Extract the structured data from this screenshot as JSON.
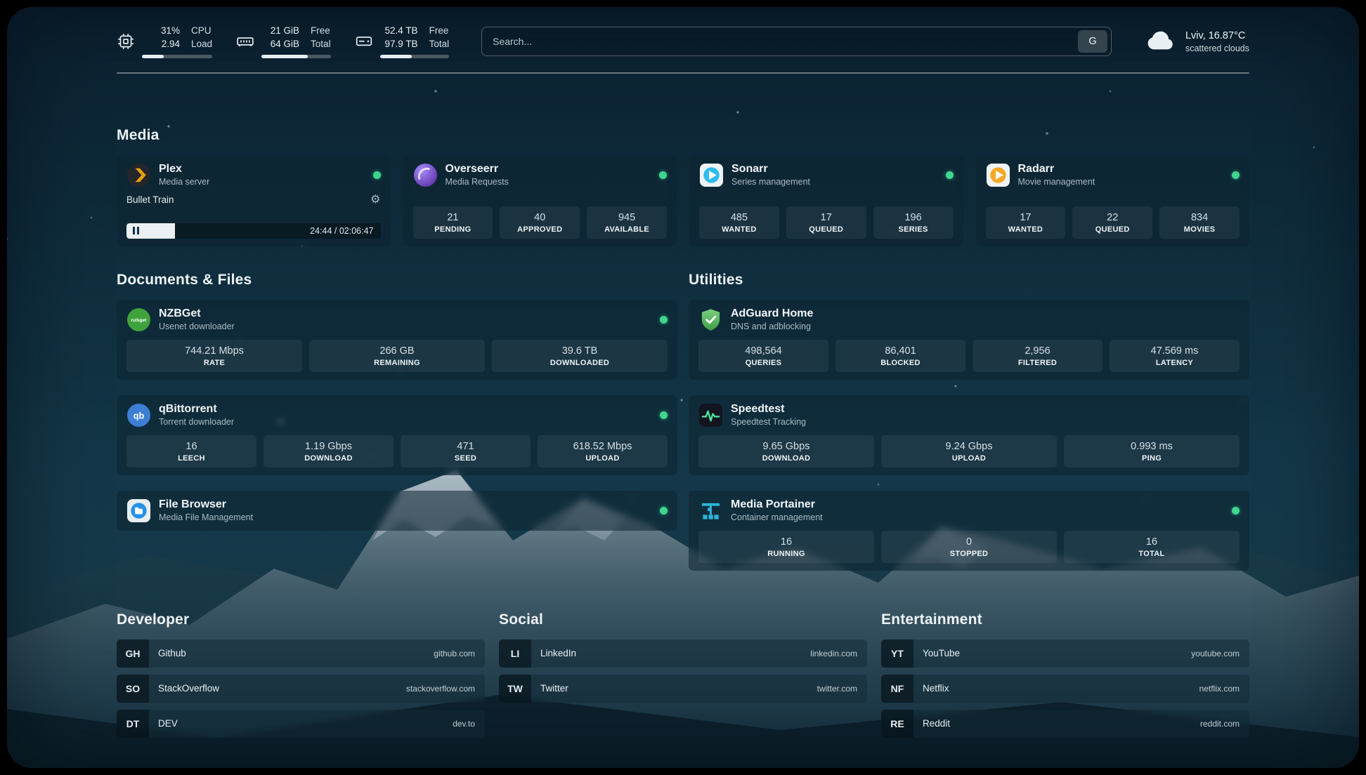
{
  "topbar": {
    "cpu": {
      "value1": "31%",
      "value2": "2.94",
      "label1": "CPU",
      "label2": "Load",
      "progress": 31
    },
    "ram": {
      "value1": "21 GiB",
      "value2": "64 GiB",
      "label1": "Free",
      "label2": "Total",
      "progress": 67
    },
    "disk": {
      "value1": "52.4 TB",
      "value2": "97.9 TB",
      "label1": "Free",
      "label2": "Total",
      "progress": 46
    },
    "search": {
      "placeholder": "Search...",
      "button_label": "G"
    },
    "weather": {
      "location": "Lviv, 16.87°C",
      "condition": "scattered clouds"
    }
  },
  "sections": {
    "media": "Media",
    "documents": "Documents & Files",
    "utilities": "Utilities",
    "developer": "Developer",
    "social": "Social",
    "entertainment": "Entertainment"
  },
  "services": {
    "plex": {
      "name": "Plex",
      "subtitle": "Media server",
      "now_playing": "Bullet Train",
      "time": "24:44 / 02:06:47",
      "progress": 19
    },
    "overseerr": {
      "name": "Overseerr",
      "subtitle": "Media Requests",
      "stats": [
        {
          "value": "21",
          "label": "PENDING"
        },
        {
          "value": "40",
          "label": "APPROVED"
        },
        {
          "value": "945",
          "label": "AVAILABLE"
        }
      ]
    },
    "sonarr": {
      "name": "Sonarr",
      "subtitle": "Series management",
      "stats": [
        {
          "value": "485",
          "label": "WANTED"
        },
        {
          "value": "17",
          "label": "QUEUED"
        },
        {
          "value": "196",
          "label": "SERIES"
        }
      ]
    },
    "radarr": {
      "name": "Radarr",
      "subtitle": "Movie management",
      "stats": [
        {
          "value": "17",
          "label": "WANTED"
        },
        {
          "value": "22",
          "label": "QUEUED"
        },
        {
          "value": "834",
          "label": "MOVIES"
        }
      ]
    },
    "nzbget": {
      "name": "NZBGet",
      "subtitle": "Usenet downloader",
      "icon_text": "nzbget",
      "stats": [
        {
          "value": "744.21 Mbps",
          "label": "RATE"
        },
        {
          "value": "266 GB",
          "label": "REMAINING"
        },
        {
          "value": "39.6 TB",
          "label": "DOWNLOADED"
        }
      ]
    },
    "qbittorrent": {
      "name": "qBittorrent",
      "subtitle": "Torrent downloader",
      "icon_text": "qb",
      "stats": [
        {
          "value": "16",
          "label": "LEECH"
        },
        {
          "value": "1.19 Gbps",
          "label": "DOWNLOAD"
        },
        {
          "value": "471",
          "label": "SEED"
        },
        {
          "value": "618.52 Mbps",
          "label": "UPLOAD"
        }
      ]
    },
    "filebrowser": {
      "name": "File Browser",
      "subtitle": "Media File Management"
    },
    "adguard": {
      "name": "AdGuard Home",
      "subtitle": "DNS and adblocking",
      "stats": [
        {
          "value": "498,564",
          "label": "QUERIES"
        },
        {
          "value": "86,401",
          "label": "BLOCKED"
        },
        {
          "value": "2,956",
          "label": "FILTERED"
        },
        {
          "value": "47.569 ms",
          "label": "LATENCY"
        }
      ]
    },
    "speedtest": {
      "name": "Speedtest",
      "subtitle": "Speedtest Tracking",
      "stats": [
        {
          "value": "9.65 Gbps",
          "label": "DOWNLOAD"
        },
        {
          "value": "9.24 Gbps",
          "label": "UPLOAD"
        },
        {
          "value": "0.993 ms",
          "label": "PING"
        }
      ]
    },
    "portainer": {
      "name": "Media Portainer",
      "subtitle": "Container management",
      "stats": [
        {
          "value": "16",
          "label": "RUNNING"
        },
        {
          "value": "0",
          "label": "STOPPED"
        },
        {
          "value": "16",
          "label": "TOTAL"
        }
      ]
    }
  },
  "bookmarks": {
    "developer": [
      {
        "abbr": "GH",
        "name": "Github",
        "url": "github.com"
      },
      {
        "abbr": "SO",
        "name": "StackOverflow",
        "url": "stackoverflow.com"
      },
      {
        "abbr": "DT",
        "name": "DEV",
        "url": "dev.to"
      }
    ],
    "social": [
      {
        "abbr": "LI",
        "name": "LinkedIn",
        "url": "linkedin.com"
      },
      {
        "abbr": "TW",
        "name": "Twitter",
        "url": "twitter.com"
      }
    ],
    "entertainment": [
      {
        "abbr": "YT",
        "name": "YouTube",
        "url": "youtube.com"
      },
      {
        "abbr": "NF",
        "name": "Netflix",
        "url": "netflix.com"
      },
      {
        "abbr": "RE",
        "name": "Reddit",
        "url": "reddit.com"
      }
    ]
  },
  "colors": {
    "status_online": "#3fd68f",
    "plex_accent": "#e5a00d"
  }
}
